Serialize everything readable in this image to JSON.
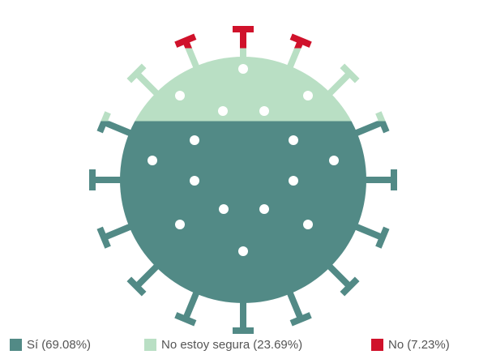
{
  "chart_data": {
    "type": "virus-fill",
    "categories": [
      "Sí",
      "No estoy segura",
      "No"
    ],
    "values": [
      69.08,
      23.69,
      7.23
    ],
    "value_labels": [
      "(69.08%)",
      "(23.69%)",
      "(7.23%)"
    ],
    "colors": [
      "#528a86",
      "#b9dfc4",
      "#d0122b"
    ]
  }
}
